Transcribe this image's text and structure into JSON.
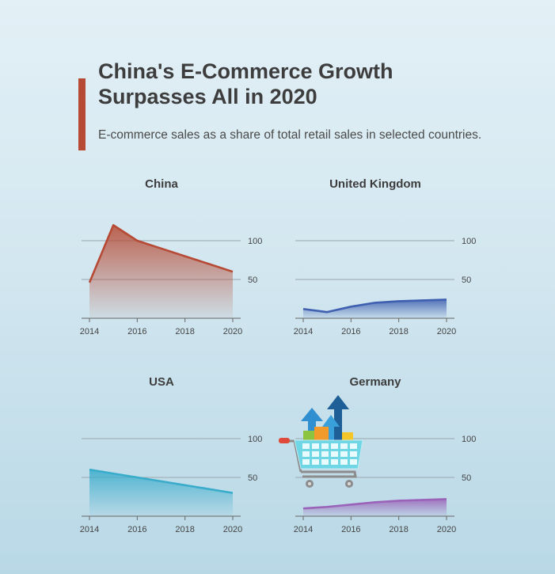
{
  "header": {
    "title_line1": "China's E-Commerce Growth",
    "title_line2": "Surpasses All in 2020",
    "subtitle": "E-commerce sales as a share of total retail sales in selected countries."
  },
  "colors": {
    "accent": "#b64a34",
    "china": "#b64a34",
    "uk": "#3f5fb0",
    "usa": "#3aaccb",
    "germany": "#9a62b8"
  },
  "icons": [
    "shopping-cart-icon",
    "growth-arrows-icon"
  ],
  "chart_data": [
    {
      "type": "area",
      "title": "China",
      "color": "#b64a34",
      "x": [
        2014,
        2015,
        2016,
        2017,
        2018,
        2019,
        2020
      ],
      "values": [
        46,
        120,
        100,
        90,
        80,
        70,
        60
      ],
      "xticks": [
        "2014",
        "2016",
        "2018",
        "2020"
      ],
      "yticks": [
        "50",
        "100"
      ],
      "ylim": [
        0,
        100
      ]
    },
    {
      "type": "area",
      "title": "United Kingdom",
      "color": "#3f5fb0",
      "x": [
        2014,
        2015,
        2016,
        2017,
        2018,
        2019,
        2020
      ],
      "values": [
        12,
        8,
        15,
        20,
        22,
        23,
        24
      ],
      "xticks": [
        "2014",
        "2016",
        "2018",
        "2020"
      ],
      "yticks": [
        "50",
        "100"
      ],
      "ylim": [
        0,
        100
      ]
    },
    {
      "type": "area",
      "title": "USA",
      "color": "#3aaccb",
      "x": [
        2014,
        2015,
        2016,
        2017,
        2018,
        2019,
        2020
      ],
      "values": [
        60,
        55,
        50,
        45,
        40,
        35,
        30
      ],
      "xticks": [
        "2014",
        "2016",
        "2018",
        "2020"
      ],
      "yticks": [
        "50",
        "100"
      ],
      "ylim": [
        0,
        100
      ]
    },
    {
      "type": "area",
      "title": "Germany",
      "color": "#9a62b8",
      "x": [
        2014,
        2015,
        2016,
        2017,
        2018,
        2019,
        2020
      ],
      "values": [
        10,
        12,
        15,
        18,
        20,
        21,
        22
      ],
      "xticks": [
        "2014",
        "2016",
        "2018",
        "2020"
      ],
      "yticks": [
        "50",
        "100"
      ],
      "ylim": [
        0,
        100
      ]
    }
  ]
}
